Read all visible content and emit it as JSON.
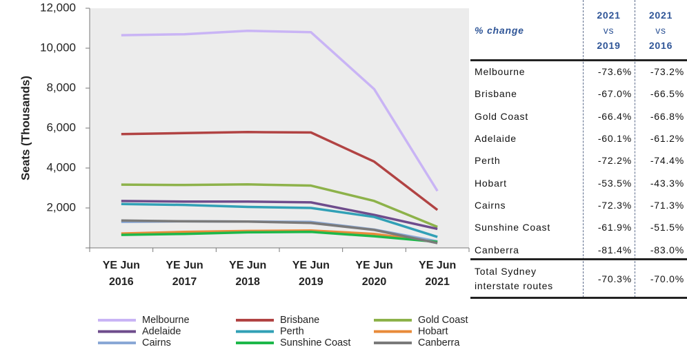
{
  "chart_data": {
    "type": "line",
    "y_axis_label": "Seats (Thousands)",
    "categories": [
      "YE Jun 2016",
      "YE Jun 2017",
      "YE Jun 2018",
      "YE Jun 2019",
      "YE Jun 2020",
      "YE Jun 2021"
    ],
    "ylim": [
      0,
      12000
    ],
    "yticks": [
      {
        "value": 2000,
        "label": "2,000"
      },
      {
        "value": 4000,
        "label": "4,000"
      },
      {
        "value": 6000,
        "label": "6,000"
      },
      {
        "value": 8000,
        "label": "8,000"
      },
      {
        "value": 10000,
        "label": "10,000"
      },
      {
        "value": 12000,
        "label": "12,000"
      }
    ],
    "series": [
      {
        "name": "Melbourne",
        "color": "#c9b4f5",
        "values": [
          10650,
          10700,
          10870,
          10800,
          7950,
          2850
        ]
      },
      {
        "name": "Brisbane",
        "color": "#b14343",
        "values": [
          5700,
          5750,
          5800,
          5780,
          4320,
          1900
        ]
      },
      {
        "name": "Gold Coast",
        "color": "#8db24a",
        "values": [
          3170,
          3150,
          3180,
          3120,
          2350,
          1050
        ]
      },
      {
        "name": "Adelaide",
        "color": "#6e4c8c",
        "values": [
          2350,
          2320,
          2320,
          2280,
          1650,
          950
        ]
      },
      {
        "name": "Perth",
        "color": "#31a0b6",
        "values": [
          2200,
          2150,
          2050,
          2000,
          1550,
          550
        ]
      },
      {
        "name": "Hobart",
        "color": "#e88b3a",
        "values": [
          720,
          800,
          850,
          870,
          700,
          300
        ]
      },
      {
        "name": "Cairns",
        "color": "#8aa8d6",
        "values": [
          1300,
          1330,
          1320,
          1300,
          920,
          330
        ]
      },
      {
        "name": "Sunshine Coast",
        "color": "#1db84a",
        "values": [
          650,
          700,
          780,
          800,
          580,
          300
        ]
      },
      {
        "name": "Canberra",
        "color": "#7a7a7a",
        "values": [
          1370,
          1330,
          1320,
          1250,
          900,
          240
        ]
      }
    ]
  },
  "table": {
    "header": [
      "% change",
      [
        "2021",
        "vs",
        "2019"
      ],
      [
        "2021",
        "vs",
        "2016"
      ]
    ],
    "rows": [
      [
        "Melbourne",
        "-73.6%",
        "-73.2%"
      ],
      [
        "Brisbane",
        "-67.0%",
        "-66.5%"
      ],
      [
        "Gold Coast",
        "-66.4%",
        "-66.8%"
      ],
      [
        "Adelaide",
        "-60.1%",
        "-61.2%"
      ],
      [
        "Perth",
        "-72.2%",
        "-74.4%"
      ],
      [
        "Hobart",
        "-53.5%",
        "-43.3%"
      ],
      [
        "Cairns",
        "-72.3%",
        "-71.3%"
      ],
      [
        "Sunshine Coast",
        "-61.9%",
        "-51.5%"
      ],
      [
        "Canberra",
        "-81.4%",
        "-83.0%"
      ]
    ],
    "total": [
      "Total Sydney interstate routes",
      "-70.3%",
      "-70.0%"
    ]
  }
}
